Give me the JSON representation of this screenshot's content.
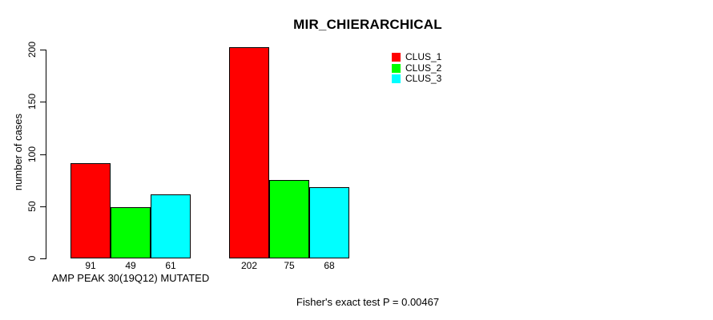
{
  "chart_data": {
    "type": "bar",
    "title": "MIR_CHIERARCHICAL",
    "ylabel": "number of cases",
    "ylim": [
      0,
      200
    ],
    "yticks": [
      0,
      50,
      100,
      150,
      200
    ],
    "group_labels": [
      "AMP PEAK 30(19Q12) MUTATED",
      ""
    ],
    "series": [
      {
        "name": "CLUS_1",
        "color": "#ff0000",
        "values": [
          91,
          202
        ]
      },
      {
        "name": "CLUS_2",
        "color": "#00ff00",
        "values": [
          49,
          75
        ]
      },
      {
        "name": "CLUS_3",
        "color": "#00ffff",
        "values": [
          61,
          68
        ]
      }
    ],
    "legend_position": "top-right",
    "grid": false,
    "annotation": "Fisher's exact test P = 0.00467"
  }
}
